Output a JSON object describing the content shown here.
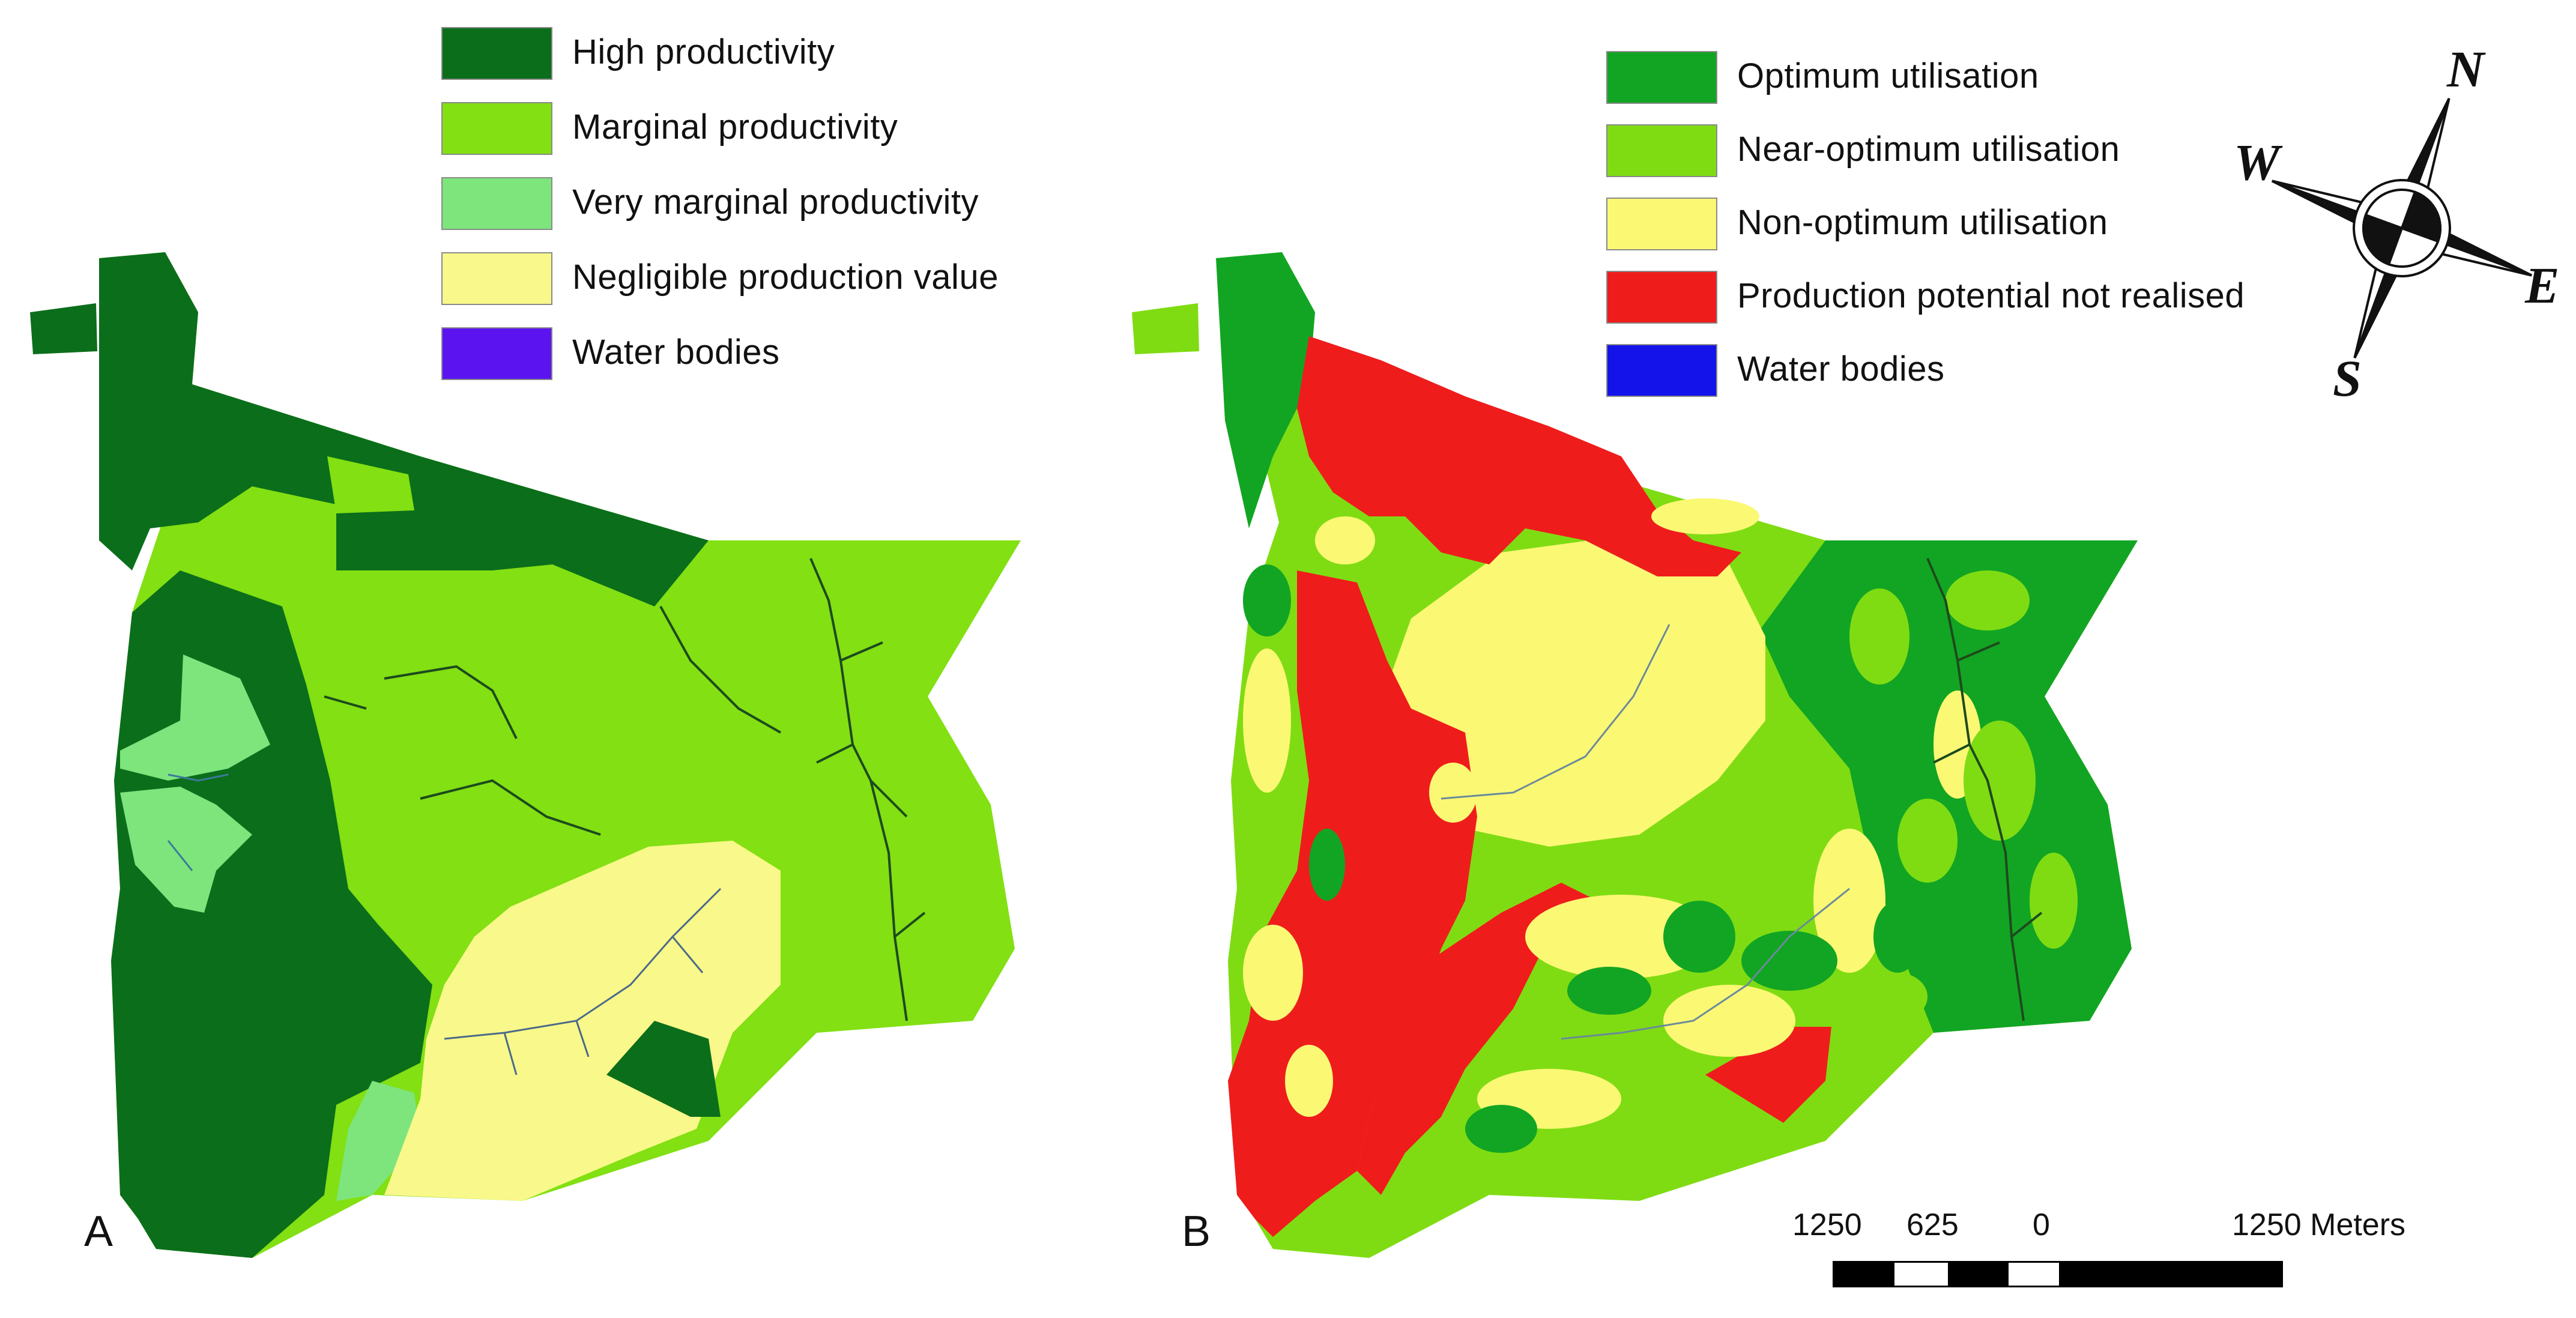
{
  "panel_a": {
    "letter": "A",
    "legend": [
      {
        "label": "High productivity",
        "color": "#0b6e1b"
      },
      {
        "label": "Marginal productivity",
        "color": "#82e013"
      },
      {
        "label": "Very marginal productivity",
        "color": "#7de57c"
      },
      {
        "label": "Negligible production value",
        "color": "#f9f88a"
      },
      {
        "label": "Water bodies",
        "color": "#5b14f0"
      }
    ]
  },
  "panel_b": {
    "letter": "B",
    "legend": [
      {
        "label": "Optimum utilisation",
        "color": "#12a523"
      },
      {
        "label": "Near-optimum utilisation",
        "color": "#7fdc13"
      },
      {
        "label": "Non-optimum utilisation",
        "color": "#fbf874"
      },
      {
        "label": "Production potential not realised",
        "color": "#ef1c1c"
      },
      {
        "label": "Water bodies",
        "color": "#1313ea"
      }
    ]
  },
  "scalebar": {
    "labels": [
      "1250",
      "625",
      "0",
      "1250 Meters"
    ]
  },
  "compass": {
    "n": "N",
    "e": "E",
    "s": "S",
    "w": "W"
  }
}
